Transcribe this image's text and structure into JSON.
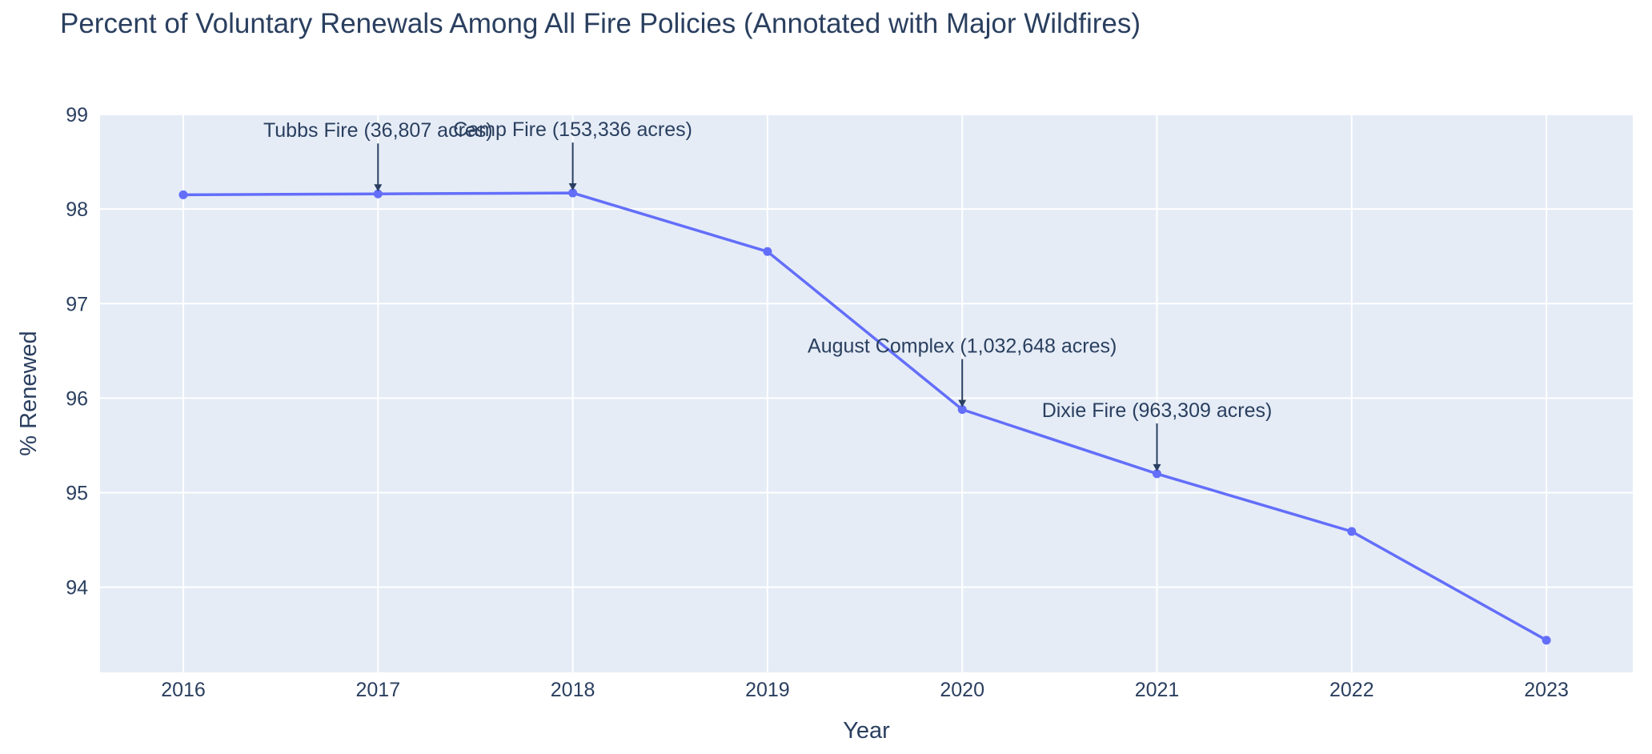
{
  "chart_data": {
    "type": "line",
    "title": "Percent of Voluntary Renewals Among All Fire Policies (Annotated with Major Wildfires)",
    "xlabel": "Year",
    "ylabel": "% Renewed",
    "x": [
      "2016",
      "2017",
      "2018",
      "2019",
      "2020",
      "2021",
      "2022",
      "2023"
    ],
    "series": [
      {
        "values": [
          98.15,
          98.16,
          98.17,
          97.55,
          95.88,
          95.2,
          94.59,
          93.44
        ]
      }
    ],
    "ylim": [
      93.1,
      99.0
    ],
    "yticks": [
      94,
      95,
      96,
      97,
      98,
      99
    ],
    "grid": true,
    "line_color": "#636efa",
    "plot_bg": "#e5ecf6",
    "annotations": [
      {
        "x": "2017",
        "y": 98.16,
        "text": "Tubbs Fire (36,807 acres)"
      },
      {
        "x": "2018",
        "y": 98.17,
        "text": "Camp Fire (153,336 acres)"
      },
      {
        "x": "2020",
        "y": 95.88,
        "text": "August Complex (1,032,648 acres)"
      },
      {
        "x": "2021",
        "y": 95.2,
        "text": "Dixie Fire (963,309 acres)"
      }
    ]
  }
}
